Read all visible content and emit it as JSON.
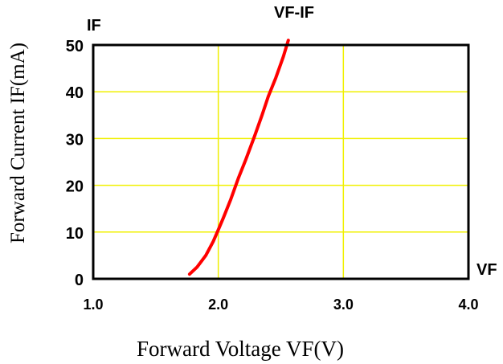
{
  "chart_data": {
    "type": "line",
    "title": "VF-IF",
    "xlabel": "Forward Voltage VF(V)",
    "ylabel": "Forward Current IF(mA)",
    "x_axis_tag": "VF",
    "y_axis_tag": "IF",
    "xlim": [
      1.0,
      4.0
    ],
    "ylim": [
      0,
      50
    ],
    "x_ticks": [
      1.0,
      2.0,
      3.0,
      4.0
    ],
    "x_tick_labels": [
      "1.0",
      "2.0",
      "3.0",
      "4.0"
    ],
    "y_ticks": [
      0,
      10,
      20,
      30,
      40,
      50
    ],
    "y_tick_labels": [
      "0",
      "10",
      "20",
      "30",
      "40",
      "50"
    ],
    "grid": true,
    "grid_color": "#f0f000",
    "line_color": "#ff0000",
    "series": [
      {
        "x": [
          1.77,
          1.83,
          1.9,
          1.96,
          2.0,
          2.04,
          2.1,
          2.16,
          2.22,
          2.29,
          2.35,
          2.4,
          2.46,
          2.52,
          2.56
        ],
        "y": [
          1,
          2.5,
          5,
          8,
          10.5,
          13,
          17,
          21.5,
          25.5,
          30.5,
          35,
          39,
          43,
          47.5,
          51
        ]
      }
    ]
  }
}
